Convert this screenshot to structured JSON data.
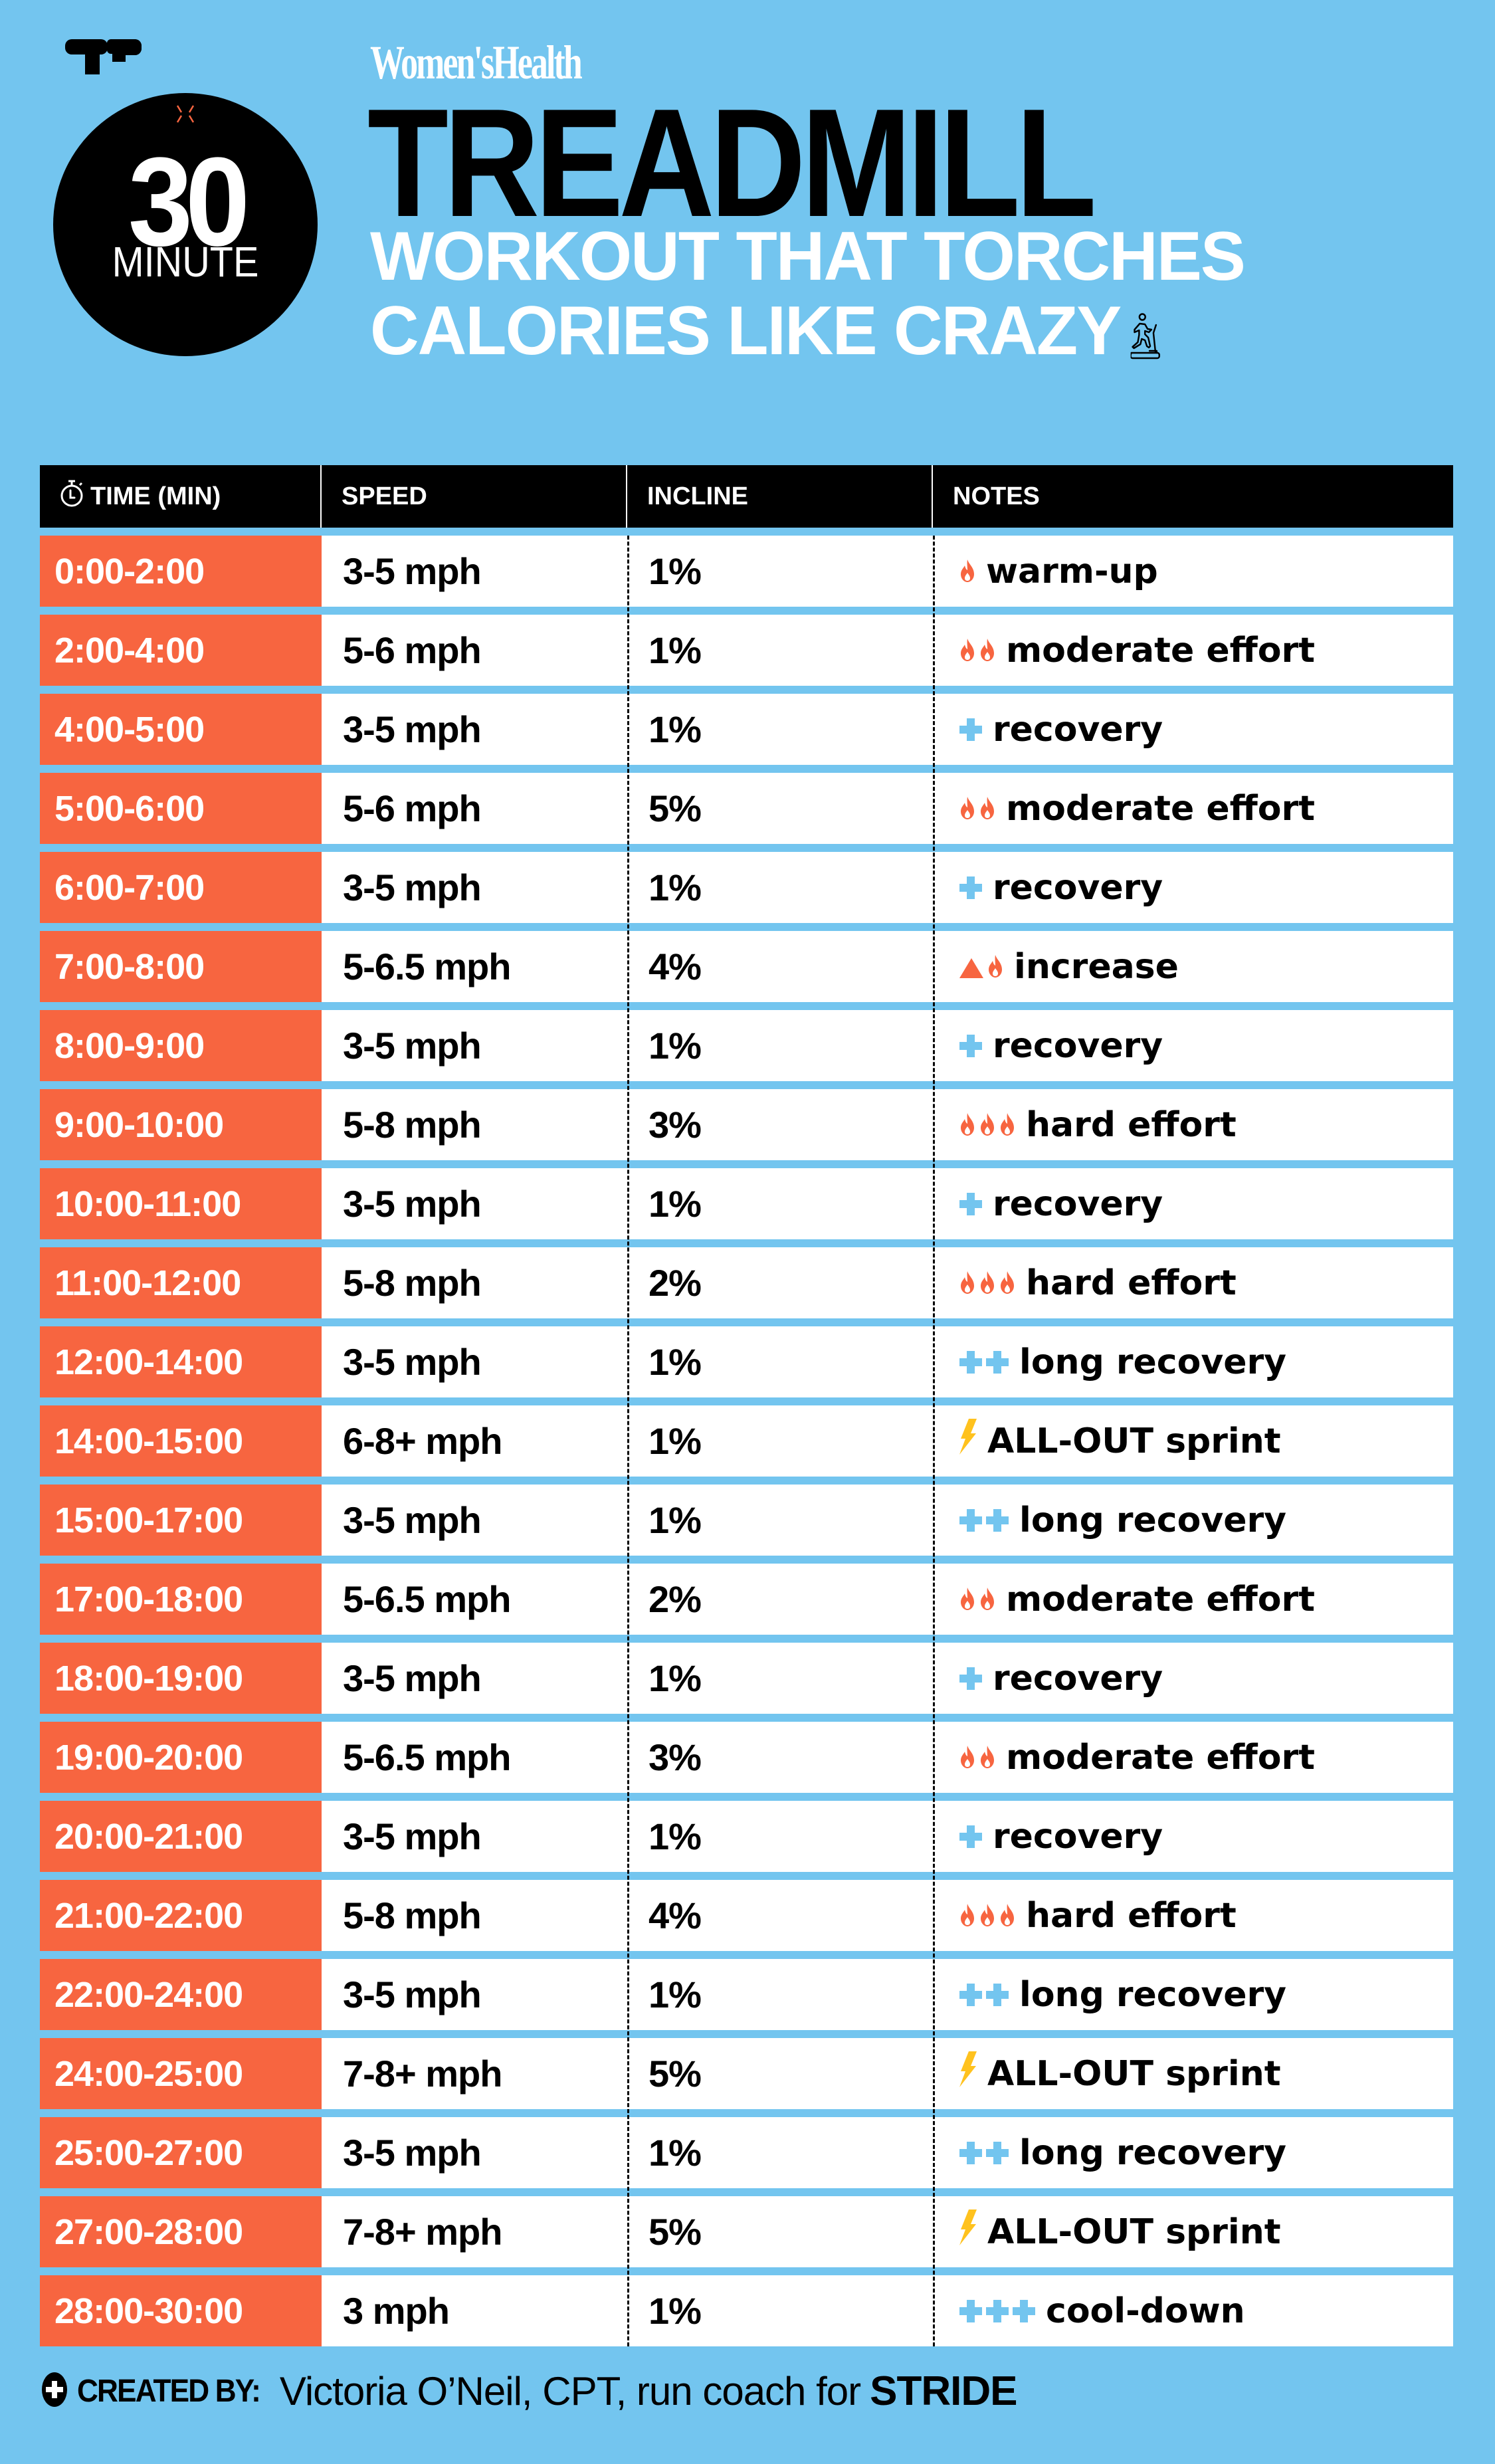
{
  "brand": "Women'sHealth",
  "badge": {
    "number": "30",
    "label": "MINUTE"
  },
  "title": "TREADMILL",
  "subtitle": {
    "line1": "WORKOUT THAT TORCHES",
    "line2": "CALORIES LIKE CRAZY"
  },
  "colors": {
    "background": "#73C5EF",
    "time_cell": "#F76540",
    "header": "#000000",
    "flame": "#F76540",
    "plus": "#73C5EF",
    "bolt": "#FFC21E"
  },
  "table": {
    "headers": {
      "time": "TIME (MIN)",
      "speed": "SPEED",
      "incline": "INCLINE",
      "notes": "NOTES"
    },
    "rows": [
      {
        "time": "0:00-2:00",
        "speed": "3-5 mph",
        "incline": "1%",
        "icons": [
          "flame"
        ],
        "note": "warm-up"
      },
      {
        "time": "2:00-4:00",
        "speed": "5-6 mph",
        "incline": "1%",
        "icons": [
          "flame",
          "flame"
        ],
        "note": "moderate effort"
      },
      {
        "time": "4:00-5:00",
        "speed": "3-5 mph",
        "incline": "1%",
        "icons": [
          "plus"
        ],
        "note": "recovery"
      },
      {
        "time": "5:00-6:00",
        "speed": "5-6 mph",
        "incline": "5%",
        "icons": [
          "flame",
          "flame"
        ],
        "note": "moderate effort"
      },
      {
        "time": "6:00-7:00",
        "speed": "3-5 mph",
        "incline": "1%",
        "icons": [
          "plus"
        ],
        "note": "recovery"
      },
      {
        "time": "7:00-8:00",
        "speed": "5-6.5 mph",
        "incline": "4%",
        "icons": [
          "triangle",
          "flame"
        ],
        "note": "increase"
      },
      {
        "time": "8:00-9:00",
        "speed": "3-5 mph",
        "incline": "1%",
        "icons": [
          "plus"
        ],
        "note": "recovery"
      },
      {
        "time": "9:00-10:00",
        "speed": "5-8 mph",
        "incline": "3%",
        "icons": [
          "flame",
          "flame",
          "flame"
        ],
        "note": "hard effort"
      },
      {
        "time": "10:00-11:00",
        "speed": "3-5 mph",
        "incline": "1%",
        "icons": [
          "plus"
        ],
        "note": "recovery"
      },
      {
        "time": "11:00-12:00",
        "speed": "5-8 mph",
        "incline": "2%",
        "icons": [
          "flame",
          "flame",
          "flame"
        ],
        "note": "hard effort"
      },
      {
        "time": "12:00-14:00",
        "speed": "3-5 mph",
        "incline": "1%",
        "icons": [
          "plus",
          "plus"
        ],
        "note": "long recovery"
      },
      {
        "time": "14:00-15:00",
        "speed": "6-8+ mph",
        "incline": "1%",
        "icons": [
          "bolt"
        ],
        "note": "ALL-OUT sprint"
      },
      {
        "time": "15:00-17:00",
        "speed": "3-5 mph",
        "incline": "1%",
        "icons": [
          "plus",
          "plus"
        ],
        "note": "long recovery"
      },
      {
        "time": "17:00-18:00",
        "speed": "5-6.5 mph",
        "incline": "2%",
        "icons": [
          "flame",
          "flame"
        ],
        "note": "moderate effort"
      },
      {
        "time": "18:00-19:00",
        "speed": "3-5 mph",
        "incline": "1%",
        "icons": [
          "plus"
        ],
        "note": "recovery"
      },
      {
        "time": "19:00-20:00",
        "speed": "5-6.5 mph",
        "incline": "3%",
        "icons": [
          "flame",
          "flame"
        ],
        "note": "moderate effort"
      },
      {
        "time": "20:00-21:00",
        "speed": "3-5 mph",
        "incline": "1%",
        "icons": [
          "plus"
        ],
        "note": "recovery"
      },
      {
        "time": "21:00-22:00",
        "speed": "5-8 mph",
        "incline": "4%",
        "icons": [
          "flame",
          "flame",
          "flame"
        ],
        "note": "hard effort"
      },
      {
        "time": "22:00-24:00",
        "speed": "3-5 mph",
        "incline": "1%",
        "icons": [
          "plus",
          "plus"
        ],
        "note": "long recovery"
      },
      {
        "time": "24:00-25:00",
        "speed": "7-8+ mph",
        "incline": "5%",
        "icons": [
          "bolt"
        ],
        "note": "ALL-OUT sprint"
      },
      {
        "time": "25:00-27:00",
        "speed": "3-5 mph",
        "incline": "1%",
        "icons": [
          "plus",
          "plus"
        ],
        "note": "long recovery"
      },
      {
        "time": "27:00-28:00",
        "speed": "7-8+ mph",
        "incline": "5%",
        "icons": [
          "bolt"
        ],
        "note": "ALL-OUT sprint"
      },
      {
        "time": "28:00-30:00",
        "speed": "3 mph",
        "incline": "1%",
        "icons": [
          "plus",
          "plus",
          "plus"
        ],
        "note": "cool-down"
      }
    ]
  },
  "footer": {
    "label": "CREATED BY:",
    "name": "Victoria O’Neil, CPT, run coach for",
    "org": "STRIDE"
  }
}
